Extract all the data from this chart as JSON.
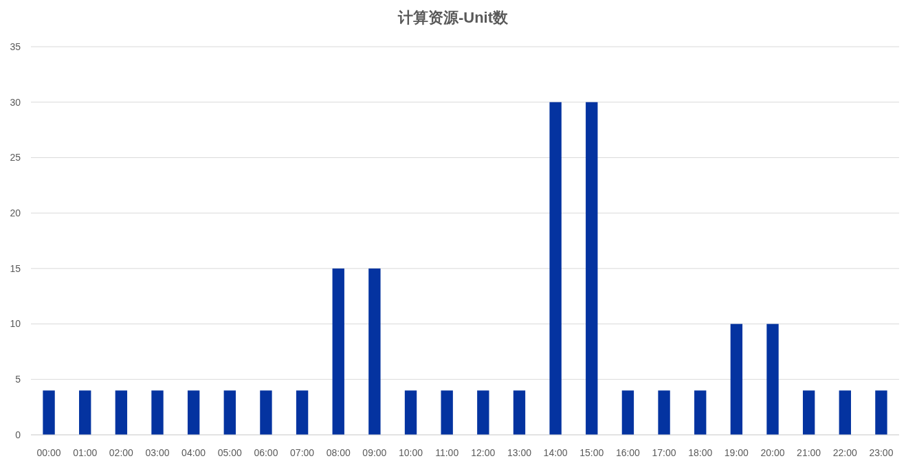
{
  "chart_data": {
    "type": "bar",
    "title": "计算资源-Unit数",
    "categories": [
      "00:00",
      "01:00",
      "02:00",
      "03:00",
      "04:00",
      "05:00",
      "06:00",
      "07:00",
      "08:00",
      "09:00",
      "10:00",
      "11:00",
      "12:00",
      "13:00",
      "14:00",
      "15:00",
      "16:00",
      "17:00",
      "18:00",
      "19:00",
      "20:00",
      "21:00",
      "22:00",
      "23:00"
    ],
    "values": [
      4,
      4,
      4,
      4,
      4,
      4,
      4,
      4,
      15,
      15,
      4,
      4,
      4,
      4,
      30,
      30,
      4,
      4,
      4,
      10,
      10,
      4,
      4,
      4
    ],
    "color": "#0433a0",
    "ylim": [
      0,
      35
    ],
    "yticks": [
      0,
      5,
      10,
      15,
      20,
      25,
      30,
      35
    ],
    "grid": "y"
  }
}
